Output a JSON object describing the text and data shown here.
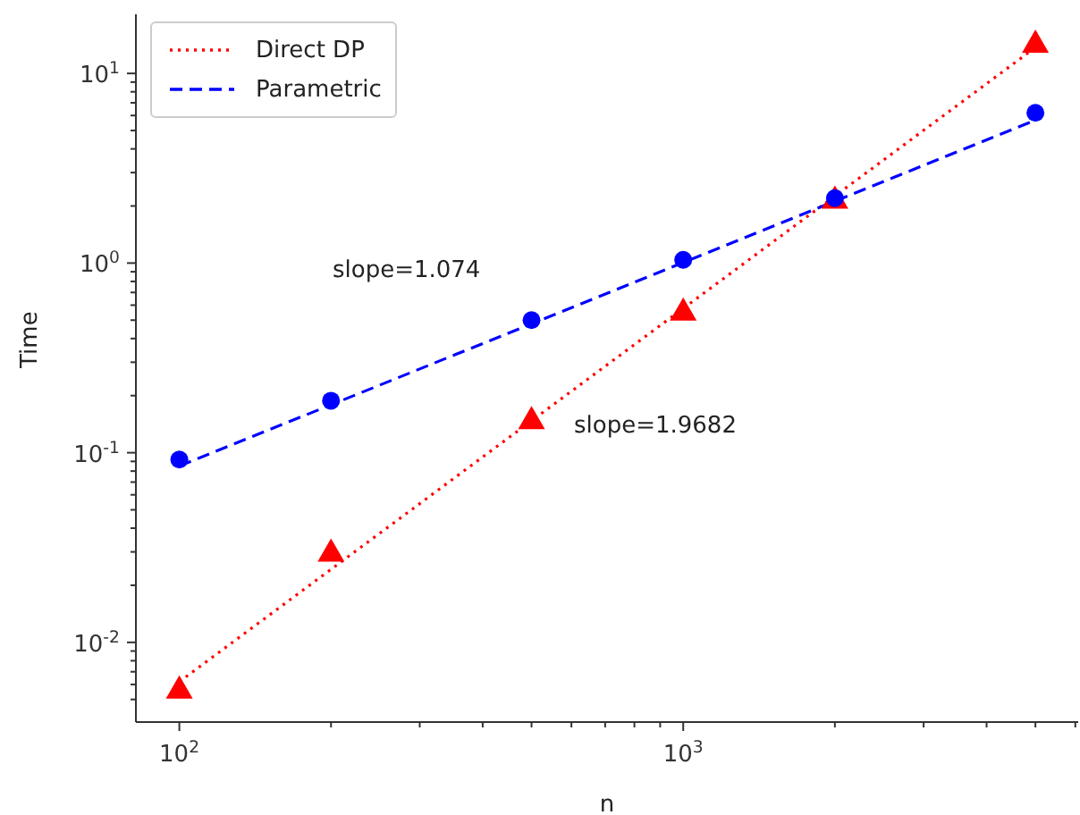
{
  "chart_data": {
    "type": "line",
    "xlabel": "n",
    "ylabel": "Time",
    "log": "xy",
    "grid": false,
    "legend": "top left",
    "xlim": [
      82,
      6080
    ],
    "ylim": [
      0.0038,
      20.5
    ],
    "xticks": [
      {
        "value": 100,
        "label": "10$^{2}$"
      },
      {
        "value": 200,
        "label": null
      },
      {
        "value": 300,
        "label": null
      },
      {
        "value": 400,
        "label": null
      },
      {
        "value": 500,
        "label": null
      },
      {
        "value": 600,
        "label": null
      },
      {
        "value": 700,
        "label": null
      },
      {
        "value": 800,
        "label": null
      },
      {
        "value": 900,
        "label": null
      },
      {
        "value": 1000,
        "label": "10$^{3}$"
      },
      {
        "value": 2000,
        "label": null
      },
      {
        "value": 3000,
        "label": null
      },
      {
        "value": 4000,
        "label": null
      },
      {
        "value": 5000,
        "label": null
      },
      {
        "value": 6000,
        "label": null
      }
    ],
    "yticks": [
      {
        "value": 0.005,
        "label": null
      },
      {
        "value": 0.006,
        "label": null
      },
      {
        "value": 0.007,
        "label": null
      },
      {
        "value": 0.008,
        "label": null
      },
      {
        "value": 0.009,
        "label": null
      },
      {
        "value": 0.01,
        "label": "10$^{-2}$"
      },
      {
        "value": 0.02,
        "label": null
      },
      {
        "value": 0.03,
        "label": null
      },
      {
        "value": 0.04,
        "label": null
      },
      {
        "value": 0.05,
        "label": null
      },
      {
        "value": 0.06,
        "label": null
      },
      {
        "value": 0.07,
        "label": null
      },
      {
        "value": 0.08,
        "label": null
      },
      {
        "value": 0.09,
        "label": null
      },
      {
        "value": 0.1,
        "label": "10$^{-1}$"
      },
      {
        "value": 0.2,
        "label": null
      },
      {
        "value": 0.3,
        "label": null
      },
      {
        "value": 0.4,
        "label": null
      },
      {
        "value": 0.5,
        "label": null
      },
      {
        "value": 0.6,
        "label": null
      },
      {
        "value": 0.7,
        "label": null
      },
      {
        "value": 0.8,
        "label": null
      },
      {
        "value": 0.9,
        "label": null
      },
      {
        "value": 1,
        "label": "10$^{0}$"
      },
      {
        "value": 2,
        "label": null
      },
      {
        "value": 3,
        "label": null
      },
      {
        "value": 4,
        "label": null
      },
      {
        "value": 5,
        "label": null
      },
      {
        "value": 6,
        "label": null
      },
      {
        "value": 7,
        "label": null
      },
      {
        "value": 8,
        "label": null
      },
      {
        "value": 9,
        "label": null
      },
      {
        "value": 10,
        "label": "10$^{1}$"
      }
    ],
    "series": [
      {
        "name": "Direct DP",
        "color": "#ff0000",
        "line_style": "dotted",
        "marker": "none",
        "x": [
          100,
          5000
        ],
        "values": [
          0.0062,
          13.7
        ]
      },
      {
        "name": "Parametric",
        "color": "#0000ff",
        "line_style": "dashed",
        "marker": "none",
        "x": [
          100,
          5000
        ],
        "values": [
          0.085,
          5.67
        ]
      },
      {
        "type": "scatter",
        "color": "#ff0000",
        "marker": "triangle",
        "x": [
          100,
          200,
          500,
          1000,
          2000,
          5000
        ],
        "values": [
          0.0057,
          0.03,
          0.15,
          0.56,
          2.18,
          14.5
        ]
      },
      {
        "type": "scatter",
        "color": "#0000ff",
        "marker": "circle",
        "x": [
          100,
          200,
          500,
          1000,
          2000,
          5000
        ],
        "values": [
          0.092,
          0.188,
          0.5,
          1.04,
          2.2,
          6.2
        ]
      }
    ],
    "annotations": [
      "slope=1.074",
      "slope=1.9682"
    ]
  }
}
